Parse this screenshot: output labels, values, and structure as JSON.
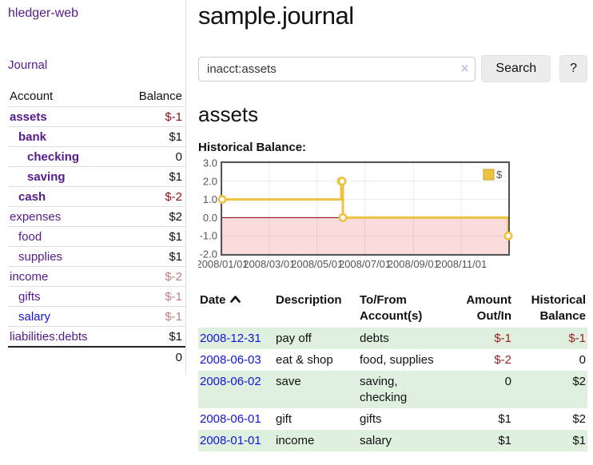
{
  "colors": {
    "link_purple": "#551a8b",
    "link_blue": "#1313dd",
    "negative": "#8b1212",
    "negative_dim": "#bd7f7f",
    "row_stripe_green": "#dff0df",
    "chart_line_gold": "#edc240",
    "chart_negative_region": "#fbdcdc",
    "chart_zero_line": "#8b0000",
    "chart_border": "#545454"
  },
  "sidebar": {
    "app_title": "hledger-web",
    "journal_link": "Journal",
    "accounts": {
      "col_account": "Account",
      "col_balance": "Balance",
      "rows": [
        {
          "name": "assets",
          "indent": 1,
          "bold": true,
          "balance": "$-1",
          "balance_style": "neg-b"
        },
        {
          "name": "bank",
          "indent": 2,
          "bold": true,
          "balance": "$1",
          "balance_style": "b"
        },
        {
          "name": "checking",
          "indent": 3,
          "bold": true,
          "balance": "0",
          "balance_style": "b"
        },
        {
          "name": "saving",
          "indent": 3,
          "bold": true,
          "balance": "$1",
          "balance_style": "b"
        },
        {
          "name": "cash",
          "indent": 2,
          "bold": true,
          "balance": "$-2",
          "balance_style": "neg-b"
        },
        {
          "name": "expenses",
          "indent": 1,
          "bold": false,
          "balance": "$2",
          "balance_style": ""
        },
        {
          "name": "food",
          "indent": 2,
          "bold": false,
          "balance": "$1",
          "balance_style": ""
        },
        {
          "name": "supplies",
          "indent": 2,
          "bold": false,
          "balance": "$1",
          "balance_style": ""
        },
        {
          "name": "income",
          "indent": 1,
          "bold": false,
          "balance": "$-2",
          "balance_style": "neg-dim"
        },
        {
          "name": "gifts",
          "indent": 2,
          "bold": false,
          "balance": "$-1",
          "balance_style": "neg-dim"
        },
        {
          "name": "salary",
          "indent": 2,
          "bold": false,
          "link_style": "blue",
          "balance": "$-1",
          "balance_style": "neg-dim"
        },
        {
          "name": "liabilities:debts",
          "indent": 1,
          "bold": false,
          "balance": "$1",
          "balance_style": ""
        }
      ],
      "total": "0"
    }
  },
  "header": {
    "title": "sample.journal"
  },
  "search": {
    "value": "inacct:assets",
    "clear_icon": "×",
    "search_button": "Search",
    "help_button": "?"
  },
  "account_page": {
    "heading": "assets",
    "chart_title": "Historical Balance:"
  },
  "chart_data": {
    "type": "line",
    "step": true,
    "title": "Historical Balance:",
    "x_range": [
      "2008-01-01",
      "2008-12-31"
    ],
    "ylim": [
      -2,
      3
    ],
    "y_ticks": [
      "3.0",
      "2.0",
      "1.0",
      "0.0",
      "-1.0",
      "-2.0"
    ],
    "x_ticks": [
      "2008/01/01",
      "2008/03/01",
      "2008/05/01",
      "2008/07/01",
      "2008/09/01",
      "2008/11/01"
    ],
    "series": [
      {
        "name": "$",
        "color": "#edc240",
        "points": [
          [
            "2008-01-01",
            1
          ],
          [
            "2008-06-01",
            2
          ],
          [
            "2008-06-02",
            2
          ],
          [
            "2008-06-03",
            0
          ],
          [
            "2008-12-31",
            -1
          ]
        ]
      }
    ],
    "legend_position": "top-right",
    "negative_region_color": "#fbdcdc",
    "zero_line_color": "#8b0000",
    "grid": true
  },
  "register": {
    "columns": [
      "Date",
      "Description",
      "To/From Account(s)",
      "Amount Out/In",
      "Historical Balance"
    ],
    "sort_column": "Date",
    "sort_direction": "ascending",
    "rows": [
      {
        "date": "2008-12-31",
        "description": "pay off",
        "accounts": "debts",
        "amount": "$-1",
        "balance": "$-1"
      },
      {
        "date": "2008-06-03",
        "description": "eat & shop",
        "accounts": "food, supplies",
        "amount": "$-2",
        "balance": "0"
      },
      {
        "date": "2008-06-02",
        "description": "save",
        "accounts": "saving, checking",
        "amount": "0",
        "balance": "$2"
      },
      {
        "date": "2008-06-01",
        "description": "gift",
        "accounts": "gifts",
        "amount": "$1",
        "balance": "$2"
      },
      {
        "date": "2008-01-01",
        "description": "income",
        "accounts": "salary",
        "amount": "$1",
        "balance": "$1"
      }
    ]
  }
}
